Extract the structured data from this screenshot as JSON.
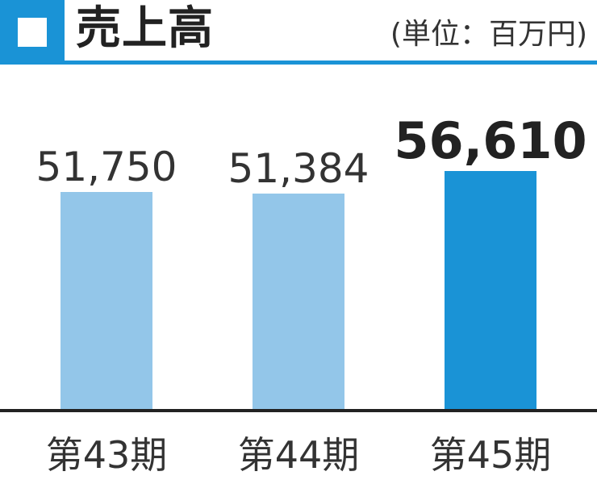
{
  "header": {
    "title": "売上高",
    "unit": "(単位：百万円)"
  },
  "colors": {
    "accent": "#1a93d6",
    "bar": "#93c6e9",
    "bar_highlight": "#1a93d6",
    "axis": "#222222",
    "text": "#333333"
  },
  "chart_data": {
    "type": "bar",
    "title": "売上高",
    "unit": "(単位：百万円)",
    "categories": [
      "第43期",
      "第44期",
      "第45期"
    ],
    "values": [
      51750,
      51384,
      56610
    ],
    "value_labels": [
      "51,750",
      "51,384",
      "56,610"
    ],
    "highlight_index": 2,
    "grid": false,
    "legend": "none"
  }
}
